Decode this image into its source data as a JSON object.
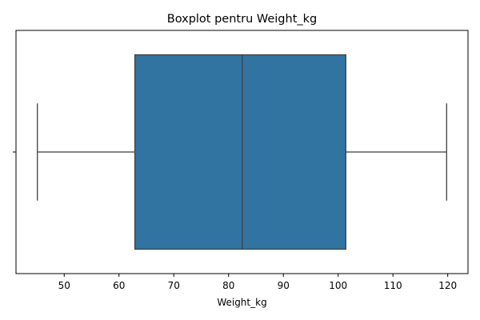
{
  "chart_data": {
    "type": "boxplot",
    "title": "Boxplot pentru Weight_kg",
    "xlabel": "Weight_kg",
    "ylabel": "",
    "xlim": [
      41.2,
      123.7
    ],
    "x_ticks": [
      50,
      60,
      70,
      80,
      90,
      100,
      110,
      120
    ],
    "x_tick_labels": [
      "50",
      "60",
      "70",
      "80",
      "90",
      "100",
      "110",
      "120"
    ],
    "y_ticks": [
      ""
    ],
    "series": [
      {
        "min": 45.1,
        "q1": 62.9,
        "median": 82.5,
        "q3": 101.4,
        "max": 119.8
      }
    ],
    "box_color": "#3274a1",
    "line_color": "#3f3f3f",
    "orientation": "horizontal",
    "grid": false,
    "legend": "none"
  }
}
